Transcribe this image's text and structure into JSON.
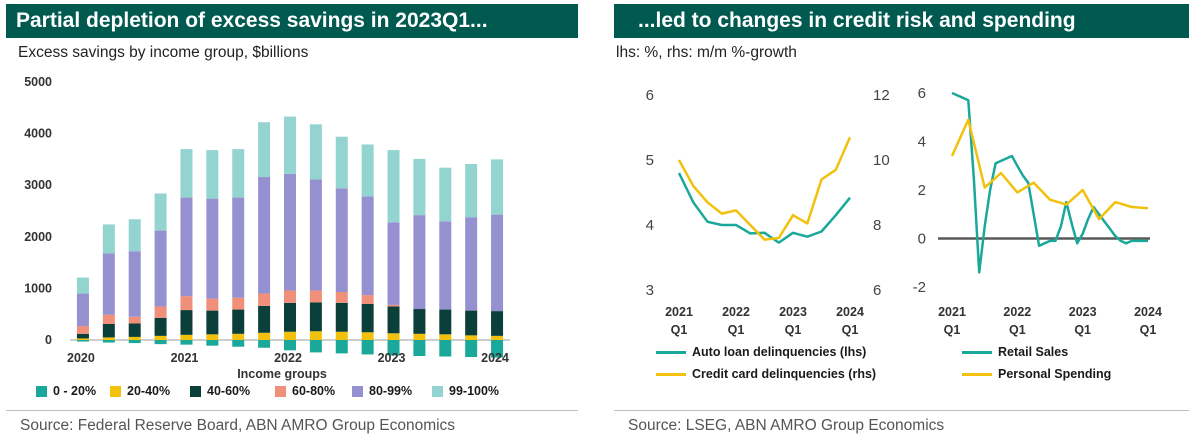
{
  "left": {
    "title": "Partial depletion of excess savings in 2023Q1...",
    "subtitle": "Excess savings by income group, $billions",
    "source": "Source:  Federal Reserve Board, ABN AMRO Group Economics"
  },
  "right": {
    "title": "...led to changes in credit risk and spending",
    "subtitle": "lhs: %, rhs: m/m %-growth",
    "source": "Source:  LSEG, ABN AMRO Group Economics"
  },
  "chart_data": [
    {
      "type": "bar",
      "stacked": true,
      "xlabel": "Income groups",
      "ylim": [
        0,
        5000
      ],
      "yticks": [
        0,
        1000,
        2000,
        3000,
        4000,
        5000
      ],
      "year_labels": [
        "2020",
        "2021",
        "2022",
        "2023",
        "2024"
      ],
      "categories": [
        "2020Q1",
        "2020Q2",
        "2020Q3",
        "2020Q4",
        "2021Q1",
        "2021Q2",
        "2021Q3",
        "2021Q4",
        "2022Q1",
        "2022Q2",
        "2022Q3",
        "2022Q4",
        "2023Q1",
        "2023Q2",
        "2023Q3",
        "2023Q4",
        "2024Q1"
      ],
      "legend_position": "bottom",
      "series": [
        {
          "name": "0 - 20%",
          "color": "#1aa89a",
          "values": [
            -30,
            -50,
            -60,
            -80,
            -90,
            -110,
            -130,
            -150,
            -200,
            -240,
            -260,
            -280,
            -300,
            -310,
            -320,
            -330,
            -340
          ]
        },
        {
          "name": "20-40%",
          "color": "#f2c10c",
          "values": [
            30,
            50,
            60,
            80,
            100,
            110,
            120,
            140,
            160,
            170,
            160,
            150,
            130,
            120,
            110,
            90,
            80
          ]
        },
        {
          "name": "40-60%",
          "color": "#0b3f3a",
          "values": [
            90,
            260,
            260,
            350,
            480,
            460,
            470,
            520,
            560,
            560,
            560,
            550,
            520,
            480,
            480,
            480,
            480
          ]
        },
        {
          "name": "60-80%",
          "color": "#f0907a",
          "values": [
            150,
            180,
            130,
            220,
            270,
            230,
            230,
            240,
            240,
            230,
            210,
            170,
            30,
            0,
            0,
            0,
            0
          ]
        },
        {
          "name": "80-99%",
          "color": "#9590d0",
          "values": [
            630,
            1190,
            1270,
            1470,
            1910,
            1940,
            1940,
            2260,
            2260,
            2150,
            2010,
            1910,
            1600,
            1820,
            1710,
            1810,
            1870
          ]
        },
        {
          "name": "99-100%",
          "color": "#93d4d0",
          "values": [
            310,
            560,
            620,
            720,
            940,
            940,
            940,
            1060,
            1110,
            1070,
            1000,
            1010,
            1400,
            1090,
            1040,
            1030,
            1070
          ]
        }
      ]
    },
    {
      "type": "line",
      "dual_axis": true,
      "x_ticks": [
        "2021",
        "2022",
        "2023",
        "2024"
      ],
      "x_subticks": [
        "Q1",
        "Q1",
        "Q1",
        "Q1"
      ],
      "x_range": [
        "2021-01",
        "2024-01"
      ],
      "ylim_left": [
        3,
        6
      ],
      "yticks_left": [
        3,
        4,
        5,
        6
      ],
      "ylim_right": [
        6,
        12
      ],
      "yticks_right": [
        6,
        8,
        10,
        12
      ],
      "series": [
        {
          "name": "Auto loan delinquencies (lhs)",
          "axis": "left",
          "color": "#1aa89a",
          "x": [
            "2021-01",
            "2021-04",
            "2021-07",
            "2021-10",
            "2022-01",
            "2022-04",
            "2022-07",
            "2022-10",
            "2023-01",
            "2023-04",
            "2023-07",
            "2023-10",
            "2024-01"
          ],
          "values": [
            4.8,
            4.35,
            4.05,
            4.0,
            4.0,
            3.87,
            3.88,
            3.73,
            3.88,
            3.82,
            3.9,
            4.15,
            4.42
          ]
        },
        {
          "name": "Credit card delinquencies (rhs)",
          "axis": "right",
          "color": "#f2c10c",
          "x": [
            "2021-01",
            "2021-04",
            "2021-07",
            "2021-10",
            "2022-01",
            "2022-04",
            "2022-07",
            "2022-10",
            "2023-01",
            "2023-04",
            "2023-07",
            "2023-10",
            "2024-01"
          ],
          "values": [
            10.0,
            9.2,
            8.7,
            8.35,
            8.45,
            8.0,
            7.55,
            7.6,
            8.3,
            8.05,
            9.4,
            9.7,
            10.7
          ]
        }
      ]
    },
    {
      "type": "line",
      "x_ticks": [
        "2021",
        "2022",
        "2023",
        "2024"
      ],
      "x_subticks": [
        "Q1",
        "Q1",
        "Q1",
        "Q1"
      ],
      "x_range": [
        "2021-01",
        "2024-01"
      ],
      "ylim": [
        -2,
        6
      ],
      "yticks": [
        -2,
        0,
        2,
        4,
        6
      ],
      "zero_line": true,
      "series": [
        {
          "name": "Retail Sales",
          "color": "#1aa89a",
          "x": [
            "2021-01",
            "2021-02",
            "2021-03",
            "2021-04",
            "2021-05",
            "2021-06",
            "2021-07",
            "2021-08",
            "2021-09",
            "2021-10",
            "2021-11",
            "2021-12",
            "2022-01",
            "2022-02",
            "2022-03",
            "2022-04",
            "2022-05",
            "2022-06",
            "2022-07",
            "2022-08",
            "2022-09",
            "2022-10",
            "2022-11",
            "2022-12",
            "2023-01",
            "2023-02",
            "2023-03",
            "2023-04",
            "2023-05",
            "2023-06",
            "2023-07",
            "2023-08",
            "2023-09",
            "2023-10",
            "2023-11",
            "2023-12",
            "2024-01"
          ],
          "values": [
            6.0,
            5.9,
            5.8,
            5.7,
            2.5,
            -1.4,
            0.5,
            2.0,
            3.1,
            3.2,
            3.3,
            3.4,
            3.0,
            2.6,
            2.3,
            1.0,
            -0.3,
            -0.2,
            -0.1,
            -0.1,
            0.5,
            1.5,
            0.6,
            -0.2,
            0.2,
            0.8,
            1.3,
            1.0,
            0.7,
            0.4,
            0.1,
            -0.1,
            -0.2,
            -0.1,
            -0.1,
            -0.1,
            -0.1
          ]
        },
        {
          "name": "Personal Spending",
          "color": "#f2c10c",
          "x": [
            "2021-01",
            "2021-04",
            "2021-07",
            "2021-10",
            "2022-01",
            "2022-04",
            "2022-07",
            "2022-10",
            "2023-01",
            "2023-04",
            "2023-07",
            "2023-10",
            "2024-01"
          ],
          "values": [
            3.4,
            4.9,
            2.1,
            2.7,
            1.9,
            2.3,
            1.6,
            1.4,
            2.0,
            0.8,
            1.5,
            1.3,
            1.25
          ]
        }
      ]
    }
  ]
}
